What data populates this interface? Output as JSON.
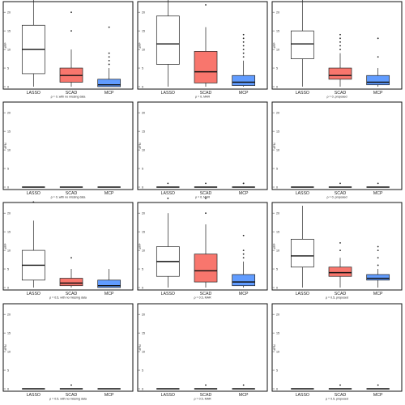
{
  "chart_data": [
    {
      "type": "boxplot",
      "subtitle": "ρ = 0, with no missing data",
      "ylabel": "#FP",
      "ylim": [
        0,
        22
      ],
      "yticks": [
        0,
        5,
        10,
        15,
        20
      ],
      "categories": [
        "LASSO",
        "SCAD",
        "MCP"
      ],
      "boxes": [
        {
          "min": 0,
          "q1": 3.5,
          "median": 10,
          "q3": 16.5,
          "max": 24,
          "outliers": []
        },
        {
          "min": 0,
          "q1": 1.2,
          "median": 3,
          "q3": 5,
          "max": 10,
          "outliers": [
            15,
            20
          ]
        },
        {
          "min": 0,
          "q1": 0,
          "median": 0.5,
          "q3": 2,
          "max": 5,
          "outliers": [
            6,
            7,
            8,
            9,
            16
          ]
        }
      ]
    },
    {
      "type": "boxplot",
      "subtitle": "ρ = 0, MAR",
      "ylabel": "#FP",
      "ylim": [
        0,
        22
      ],
      "yticks": [
        0,
        5,
        10,
        15,
        20
      ],
      "categories": [
        "LASSO",
        "SCAD",
        "MCP"
      ],
      "boxes": [
        {
          "min": 0,
          "q1": 6,
          "median": 11.5,
          "q3": 19,
          "max": 24,
          "outliers": []
        },
        {
          "min": 0,
          "q1": 1,
          "median": 4,
          "q3": 9.5,
          "max": 16,
          "outliers": [
            22
          ]
        },
        {
          "min": 0,
          "q1": 0.3,
          "median": 1.2,
          "q3": 3,
          "max": 7,
          "outliers": [
            8,
            9,
            10,
            11,
            12,
            13,
            14
          ]
        }
      ]
    },
    {
      "type": "boxplot",
      "subtitle": "ρ = 0, proposed",
      "ylabel": "#FP",
      "ylim": [
        0,
        22
      ],
      "yticks": [
        0,
        5,
        10,
        15,
        20
      ],
      "categories": [
        "LASSO",
        "SCAD",
        "MCP"
      ],
      "boxes": [
        {
          "min": 0,
          "q1": 7.5,
          "median": 11.5,
          "q3": 15,
          "max": 24,
          "outliers": []
        },
        {
          "min": 0,
          "q1": 2,
          "median": 3,
          "q3": 5,
          "max": 9,
          "outliers": [
            10,
            11,
            12,
            13,
            14
          ]
        },
        {
          "min": 0,
          "q1": 0.5,
          "median": 1.2,
          "q3": 3,
          "max": 5,
          "outliers": [
            8,
            13
          ]
        }
      ]
    },
    {
      "type": "boxplot",
      "subtitle": "ρ = 0, with no missing data",
      "ylabel": "#FN",
      "ylim": [
        0,
        22
      ],
      "yticks": [
        0,
        5,
        10,
        15,
        20
      ],
      "categories": [
        "LASSO",
        "SCAD",
        "MCP"
      ],
      "boxes": [
        {
          "min": 0,
          "q1": 0,
          "median": 0,
          "q3": 0,
          "max": 0,
          "outliers": []
        },
        {
          "min": 0,
          "q1": 0,
          "median": 0,
          "q3": 0,
          "max": 0,
          "outliers": []
        },
        {
          "min": 0,
          "q1": 0,
          "median": 0,
          "q3": 0,
          "max": 0,
          "outliers": []
        }
      ]
    },
    {
      "type": "boxplot",
      "subtitle": "ρ = 0, MAR",
      "ylabel": "#FN",
      "ylim": [
        0,
        22
      ],
      "yticks": [
        0,
        5,
        10,
        15,
        20
      ],
      "categories": [
        "LASSO",
        "SCAD",
        "MCP"
      ],
      "boxes": [
        {
          "min": 0,
          "q1": 0,
          "median": 0,
          "q3": 0,
          "max": 0,
          "outliers": [
            1
          ]
        },
        {
          "min": 0,
          "q1": 0,
          "median": 0,
          "q3": 0,
          "max": 0,
          "outliers": [
            1
          ]
        },
        {
          "min": 0,
          "q1": 0,
          "median": 0,
          "q3": 0,
          "max": 0,
          "outliers": [
            1,
            1
          ]
        }
      ]
    },
    {
      "type": "boxplot",
      "subtitle": "ρ = 0, proposed",
      "ylabel": "#FN",
      "ylim": [
        0,
        22
      ],
      "yticks": [
        0,
        5,
        10,
        15,
        20
      ],
      "categories": [
        "LASSO",
        "SCAD",
        "MCP"
      ],
      "boxes": [
        {
          "min": 0,
          "q1": 0,
          "median": 0,
          "q3": 0,
          "max": 0,
          "outliers": []
        },
        {
          "min": 0,
          "q1": 0,
          "median": 0,
          "q3": 0,
          "max": 0,
          "outliers": [
            1
          ]
        },
        {
          "min": 0,
          "q1": 0,
          "median": 0,
          "q3": 0,
          "max": 0,
          "outliers": [
            1
          ]
        }
      ]
    },
    {
      "type": "boxplot",
      "subtitle": "ρ = 0.5, with no missing data",
      "ylabel": "#FP",
      "ylim": [
        0,
        22
      ],
      "yticks": [
        0,
        5,
        10,
        15,
        20
      ],
      "categories": [
        "LASSO",
        "SCAD",
        "MCP"
      ],
      "boxes": [
        {
          "min": 0,
          "q1": 2,
          "median": 6,
          "q3": 10,
          "max": 18,
          "outliers": [
            23
          ]
        },
        {
          "min": 0,
          "q1": 0.5,
          "median": 1.2,
          "q3": 2.5,
          "max": 5,
          "outliers": [
            8
          ]
        },
        {
          "min": 0,
          "q1": 0,
          "median": 0.5,
          "q3": 2,
          "max": 5,
          "outliers": []
        }
      ]
    },
    {
      "type": "boxplot",
      "subtitle": "ρ = 0.5, MAR",
      "ylabel": "#FP",
      "ylim": [
        0,
        22
      ],
      "yticks": [
        0,
        5,
        10,
        15,
        20
      ],
      "categories": [
        "LASSO",
        "SCAD",
        "MCP"
      ],
      "boxes": [
        {
          "min": 0,
          "q1": 3,
          "median": 7,
          "q3": 11,
          "max": 20,
          "outliers": [
            24
          ]
        },
        {
          "min": 0,
          "q1": 1.5,
          "median": 4.5,
          "q3": 9,
          "max": 17,
          "outliers": [
            20,
            24
          ]
        },
        {
          "min": 0,
          "q1": 0.5,
          "median": 1.5,
          "q3": 3.5,
          "max": 7,
          "outliers": [
            8,
            9,
            10,
            14
          ]
        }
      ]
    },
    {
      "type": "boxplot",
      "subtitle": "ρ = 0.5, proposed",
      "ylabel": "#FP",
      "ylim": [
        0,
        22
      ],
      "yticks": [
        0,
        5,
        10,
        15,
        20
      ],
      "categories": [
        "LASSO",
        "SCAD",
        "MCP"
      ],
      "boxes": [
        {
          "min": 0,
          "q1": 5.5,
          "median": 8.5,
          "q3": 13,
          "max": 22,
          "outliers": []
        },
        {
          "min": 0,
          "q1": 3,
          "median": 4,
          "q3": 5.5,
          "max": 8,
          "outliers": [
            10,
            12
          ]
        },
        {
          "min": 0,
          "q1": 2,
          "median": 2.5,
          "q3": 3.5,
          "max": 5,
          "outliers": [
            6,
            8,
            10,
            11
          ]
        }
      ]
    },
    {
      "type": "boxplot",
      "subtitle": "ρ = 0.5, with no missing data",
      "ylabel": "#FN",
      "ylim": [
        0,
        22
      ],
      "yticks": [
        0,
        5,
        10,
        15,
        20
      ],
      "categories": [
        "LASSO",
        "SCAD",
        "MCP"
      ],
      "boxes": [
        {
          "min": 0,
          "q1": 0,
          "median": 0,
          "q3": 0,
          "max": 0,
          "outliers": []
        },
        {
          "min": 0,
          "q1": 0,
          "median": 0,
          "q3": 0,
          "max": 0,
          "outliers": [
            1
          ]
        },
        {
          "min": 0,
          "q1": 0,
          "median": 0,
          "q3": 0,
          "max": 0,
          "outliers": []
        }
      ]
    },
    {
      "type": "boxplot",
      "subtitle": "ρ = 0.5, MAR",
      "ylabel": "#FN",
      "ylim": [
        0,
        22
      ],
      "yticks": [
        0,
        5,
        10,
        15,
        20
      ],
      "categories": [
        "LASSO",
        "SCAD",
        "MCP"
      ],
      "boxes": [
        {
          "min": 0,
          "q1": 0,
          "median": 0,
          "q3": 0,
          "max": 0,
          "outliers": []
        },
        {
          "min": 0,
          "q1": 0,
          "median": 0,
          "q3": 0,
          "max": 0,
          "outliers": [
            1
          ]
        },
        {
          "min": 0,
          "q1": 0,
          "median": 0,
          "q3": 0,
          "max": 0,
          "outliers": [
            1
          ]
        }
      ]
    },
    {
      "type": "boxplot",
      "subtitle": "ρ = 0.5, proposed",
      "ylabel": "#FN",
      "ylim": [
        0,
        22
      ],
      "yticks": [
        0,
        5,
        10,
        15,
        20
      ],
      "categories": [
        "LASSO",
        "SCAD",
        "MCP"
      ],
      "boxes": [
        {
          "min": 0,
          "q1": 0,
          "median": 0,
          "q3": 0,
          "max": 0,
          "outliers": []
        },
        {
          "min": 0,
          "q1": 0,
          "median": 0,
          "q3": 0,
          "max": 0,
          "outliers": [
            1
          ]
        },
        {
          "min": 0,
          "q1": 0,
          "median": 0,
          "q3": 0,
          "max": 0,
          "outliers": [
            1
          ]
        }
      ]
    }
  ],
  "colors": {
    "LASSO": "#ffffff",
    "SCAD": "#f8766d",
    "MCP": "#619cff",
    "frame": "#111111",
    "text": "#222222"
  }
}
